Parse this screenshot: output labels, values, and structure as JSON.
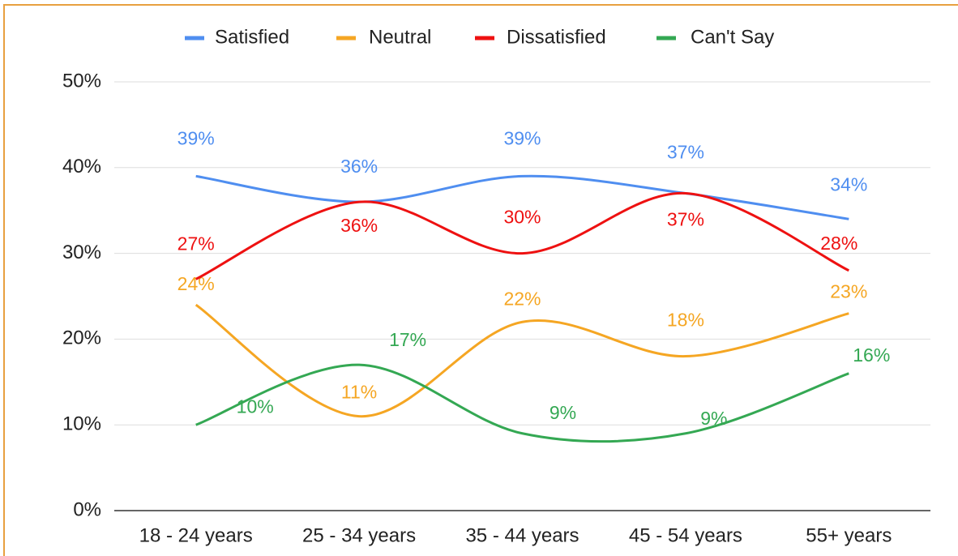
{
  "chart_data": {
    "type": "line",
    "categories": [
      "18 - 24 years",
      "25 - 34 years",
      "35 - 44 years",
      "45 - 54 years",
      "55+ years"
    ],
    "series": [
      {
        "name": "Satisfied",
        "color": "#4f8ef0",
        "values": [
          39,
          36,
          39,
          37,
          34
        ],
        "value_labels": [
          "39%",
          "36%",
          "39%",
          "37%",
          "34%"
        ]
      },
      {
        "name": "Neutral",
        "color": "#f5a623",
        "values": [
          24,
          11,
          22,
          18,
          23
        ],
        "value_labels": [
          "24%",
          "11%",
          "22%",
          "18%",
          "23%"
        ]
      },
      {
        "name": "Dissatisfied",
        "color": "#ee1111",
        "values": [
          27,
          36,
          30,
          37,
          28
        ],
        "value_labels": [
          "27%",
          "36%",
          "30%",
          "37%",
          "28%"
        ]
      },
      {
        "name": "Can't Say",
        "color": "#34a853",
        "values": [
          10,
          17,
          9,
          9,
          16
        ],
        "value_labels": [
          "10%",
          "17%",
          "9%",
          "9%",
          "16%"
        ]
      }
    ],
    "ylim": [
      0,
      50
    ],
    "yticks": [
      {
        "value": 0,
        "label": "0%"
      },
      {
        "value": 10,
        "label": "10%"
      },
      {
        "value": 20,
        "label": "20%"
      },
      {
        "value": 30,
        "label": "30%"
      },
      {
        "value": 40,
        "label": "40%"
      },
      {
        "value": 50,
        "label": "50%"
      }
    ],
    "grid": true,
    "smooth": true,
    "legend": "top"
  }
}
